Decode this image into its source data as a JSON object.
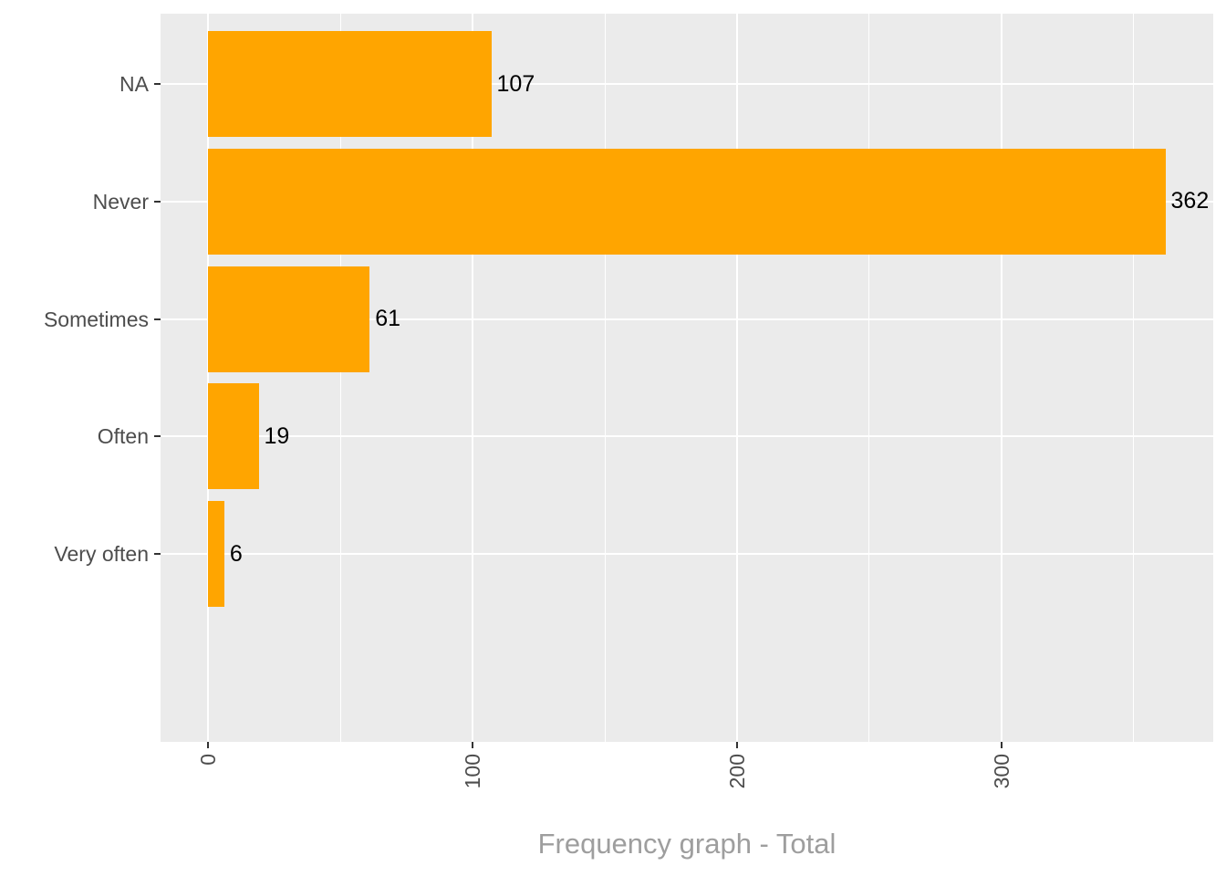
{
  "chart_data": {
    "type": "bar",
    "orientation": "horizontal",
    "title": "Frequency graph - Total",
    "title_position": "bottom-center",
    "categories": [
      "NA",
      "Never",
      "Sometimes",
      "Often",
      "Very often"
    ],
    "values": [
      107,
      362,
      61,
      19,
      6
    ],
    "bar_labels": [
      "107",
      "362",
      "61",
      "19",
      "6"
    ],
    "x_axis": {
      "major_ticks": [
        0,
        100,
        200,
        300
      ],
      "major_tick_labels": [
        "0",
        "100",
        "200",
        "300"
      ],
      "minor_ticks": [
        50,
        150,
        250,
        350
      ],
      "range": [
        -18.1,
        380.1
      ],
      "tick_label_rotation_deg": -90
    },
    "y_axis": {
      "tick_labels": [
        "NA",
        "Never",
        "Sometimes",
        "Often",
        "Very often"
      ]
    },
    "bar_width_fraction": 0.9,
    "grid": {
      "major": true,
      "minor": true,
      "minor_y": false
    },
    "legend_position": "none",
    "colors": {
      "bar": "#FFA500",
      "panel_background": "#EBEBEB",
      "gridline": "#FFFFFF",
      "tick_mark": "#333333",
      "axis_text": "#4D4D4D",
      "bar_label_text": "#000000",
      "title_text": "#9E9E9E",
      "figure_background": "#FFFFFF"
    }
  }
}
